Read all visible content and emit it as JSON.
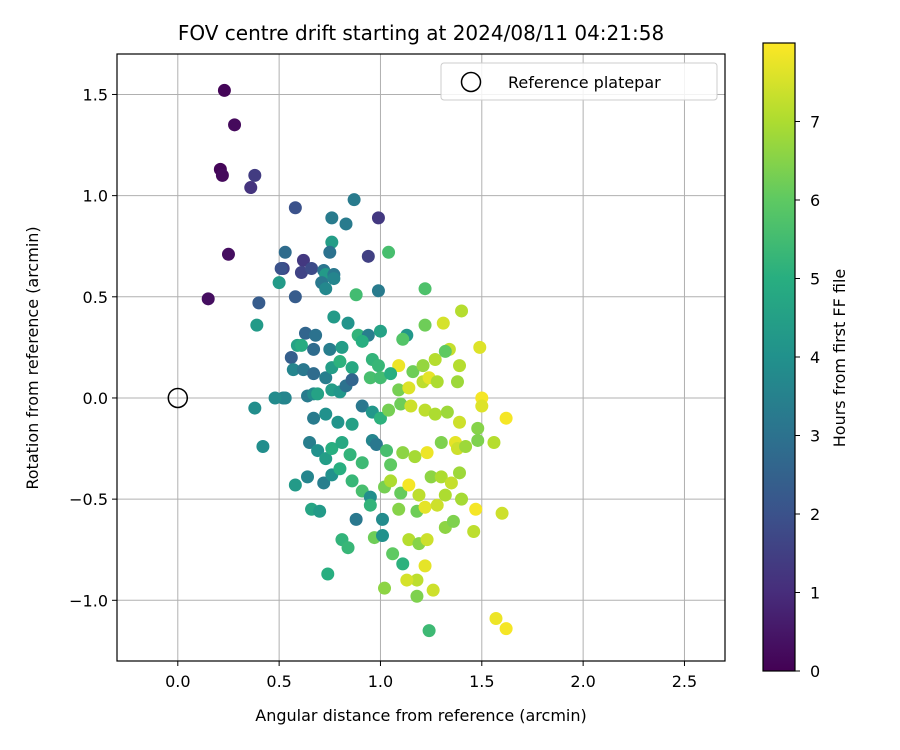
{
  "chart_data": {
    "type": "scatter",
    "title": "FOV centre drift starting at 2024/08/11 04:21:58",
    "xlabel": "Angular distance from reference (arcmin)",
    "ylabel": "Rotation from reference (arcmin)",
    "xlim": [
      -0.3,
      2.7
    ],
    "ylim": [
      -1.3,
      1.7
    ],
    "xticks": [
      0.0,
      0.5,
      1.0,
      1.5,
      2.0,
      2.5
    ],
    "xtick_labels": [
      "0.0",
      "0.5",
      "1.0",
      "1.5",
      "2.0",
      "2.5"
    ],
    "yticks": [
      -1.0,
      -0.5,
      0.0,
      0.5,
      1.0,
      1.5
    ],
    "ytick_labels": [
      "−1.0",
      "−0.5",
      "0.0",
      "0.5",
      "1.0",
      "1.5"
    ],
    "grid": true,
    "legend": {
      "placement": "top-right",
      "entries": [
        "Reference platepar"
      ]
    },
    "reference_point": {
      "x": 0.0,
      "y": 0.0,
      "marker": "open-circle"
    },
    "colorbar": {
      "label": "Hours from first FF file",
      "colormap": "viridis",
      "range": [
        0,
        8
      ],
      "ticks": [
        0,
        1,
        2,
        3,
        4,
        5,
        6,
        7
      ],
      "tick_labels": [
        "0",
        "1",
        "2",
        "3",
        "4",
        "5",
        "6",
        "7"
      ]
    },
    "points": [
      [
        0.23,
        1.52,
        0.1
      ],
      [
        0.28,
        1.35,
        0.2
      ],
      [
        0.21,
        1.13,
        0.1
      ],
      [
        0.22,
        1.1,
        0.2
      ],
      [
        0.36,
        1.04,
        1.2
      ],
      [
        0.38,
        1.1,
        1.4
      ],
      [
        0.25,
        0.71,
        0.3
      ],
      [
        0.15,
        0.49,
        0.3
      ],
      [
        0.58,
        0.94,
        2.0
      ],
      [
        0.76,
        0.89,
        3.3
      ],
      [
        0.87,
        0.98,
        3.3
      ],
      [
        0.99,
        0.89,
        1.3
      ],
      [
        0.83,
        0.86,
        3.3
      ],
      [
        0.94,
        0.7,
        1.5
      ],
      [
        1.04,
        0.72,
        5.6
      ],
      [
        0.76,
        0.77,
        4.4
      ],
      [
        0.75,
        0.72,
        3.0
      ],
      [
        0.53,
        0.72,
        2.8
      ],
      [
        0.52,
        0.64,
        1.6
      ],
      [
        0.51,
        0.64,
        2.0
      ],
      [
        0.62,
        0.68,
        1.3
      ],
      [
        0.61,
        0.62,
        1.6
      ],
      [
        0.66,
        0.64,
        1.8
      ],
      [
        0.72,
        0.63,
        3.1
      ],
      [
        0.73,
        0.61,
        4.3
      ],
      [
        0.77,
        0.61,
        3.2
      ],
      [
        0.71,
        0.57,
        3.2
      ],
      [
        0.73,
        0.54,
        3.7
      ],
      [
        0.77,
        0.59,
        3.6
      ],
      [
        0.5,
        0.57,
        4.3
      ],
      [
        0.4,
        0.47,
        2.3
      ],
      [
        0.58,
        0.5,
        2.3
      ],
      [
        0.88,
        0.51,
        5.5
      ],
      [
        0.99,
        0.53,
        3.3
      ],
      [
        1.22,
        0.54,
        5.7
      ],
      [
        0.39,
        0.36,
        4.3
      ],
      [
        0.63,
        0.32,
        2.6
      ],
      [
        0.68,
        0.31,
        3.0
      ],
      [
        0.77,
        0.4,
        4.3
      ],
      [
        0.84,
        0.37,
        4.1
      ],
      [
        0.89,
        0.31,
        5.2
      ],
      [
        0.94,
        0.31,
        3.4
      ],
      [
        1.0,
        0.33,
        4.6
      ],
      [
        1.13,
        0.31,
        4.2
      ],
      [
        1.11,
        0.29,
        5.8
      ],
      [
        1.22,
        0.36,
        6.2
      ],
      [
        1.31,
        0.37,
        7.5
      ],
      [
        1.4,
        0.43,
        7.1
      ],
      [
        0.59,
        0.26,
        4.6
      ],
      [
        0.61,
        0.26,
        4.9
      ],
      [
        0.67,
        0.24,
        2.8
      ],
      [
        0.75,
        0.24,
        3.4
      ],
      [
        0.81,
        0.25,
        4.4
      ],
      [
        0.91,
        0.28,
        5.0
      ],
      [
        0.56,
        0.2,
        2.4
      ],
      [
        0.57,
        0.14,
        3.6
      ],
      [
        0.62,
        0.14,
        3.2
      ],
      [
        0.67,
        0.12,
        2.8
      ],
      [
        0.73,
        0.1,
        3.4
      ],
      [
        0.76,
        0.15,
        4.4
      ],
      [
        0.8,
        0.18,
        5.1
      ],
      [
        0.86,
        0.15,
        4.8
      ],
      [
        0.96,
        0.19,
        5.2
      ],
      [
        0.99,
        0.16,
        5.3
      ],
      [
        1.09,
        0.16,
        7.8
      ],
      [
        1.16,
        0.13,
        6.2
      ],
      [
        1.21,
        0.16,
        6.7
      ],
      [
        1.27,
        0.19,
        7.1
      ],
      [
        1.34,
        0.24,
        7.3
      ],
      [
        1.32,
        0.23,
        6.0
      ],
      [
        1.39,
        0.16,
        7.1
      ],
      [
        1.49,
        0.25,
        7.6
      ],
      [
        0.52,
        0.0,
        3.5
      ],
      [
        0.53,
        0.0,
        3.6
      ],
      [
        0.48,
        0.0,
        3.8
      ],
      [
        0.64,
        0.01,
        3.3
      ],
      [
        0.67,
        0.02,
        3.8
      ],
      [
        0.69,
        0.02,
        4.6
      ],
      [
        0.76,
        0.04,
        4.4
      ],
      [
        0.8,
        0.03,
        4.2
      ],
      [
        0.83,
        0.06,
        3.0
      ],
      [
        0.86,
        0.09,
        2.6
      ],
      [
        0.95,
        0.1,
        5.6
      ],
      [
        1.0,
        0.1,
        5.5
      ],
      [
        1.05,
        0.12,
        5.0
      ],
      [
        1.09,
        0.04,
        6.3
      ],
      [
        1.14,
        0.05,
        7.6
      ],
      [
        1.21,
        0.08,
        7.2
      ],
      [
        1.24,
        0.1,
        7.7
      ],
      [
        1.28,
        0.08,
        7.0
      ],
      [
        1.38,
        0.08,
        6.8
      ],
      [
        1.5,
        0.0,
        7.9
      ],
      [
        1.5,
        -0.04,
        7.6
      ],
      [
        0.38,
        -0.05,
        3.9
      ],
      [
        0.42,
        -0.24,
        3.9
      ],
      [
        0.67,
        -0.1,
        3.3
      ],
      [
        0.73,
        -0.08,
        4.0
      ],
      [
        0.79,
        -0.12,
        4.1
      ],
      [
        0.86,
        -0.13,
        4.5
      ],
      [
        0.91,
        -0.04,
        3.2
      ],
      [
        0.96,
        -0.07,
        4.2
      ],
      [
        1.0,
        -0.1,
        5.1
      ],
      [
        1.04,
        -0.06,
        6.3
      ],
      [
        1.1,
        -0.03,
        6.2
      ],
      [
        1.15,
        -0.04,
        7.4
      ],
      [
        1.22,
        -0.06,
        7.2
      ],
      [
        1.27,
        -0.08,
        7.0
      ],
      [
        1.33,
        -0.07,
        6.8
      ],
      [
        1.39,
        -0.12,
        7.4
      ],
      [
        1.48,
        -0.15,
        6.5
      ],
      [
        1.62,
        -0.1,
        7.9
      ],
      [
        0.65,
        -0.22,
        3.4
      ],
      [
        0.69,
        -0.26,
        4.0
      ],
      [
        0.73,
        -0.3,
        4.4
      ],
      [
        0.76,
        -0.25,
        5.0
      ],
      [
        0.81,
        -0.22,
        4.8
      ],
      [
        0.85,
        -0.28,
        5.2
      ],
      [
        0.91,
        -0.32,
        5.4
      ],
      [
        0.96,
        -0.21,
        3.6
      ],
      [
        0.98,
        -0.23,
        3.2
      ],
      [
        1.03,
        -0.26,
        5.6
      ],
      [
        1.05,
        -0.33,
        6.0
      ],
      [
        1.11,
        -0.27,
        6.6
      ],
      [
        1.17,
        -0.29,
        6.9
      ],
      [
        1.23,
        -0.27,
        7.8
      ],
      [
        1.3,
        -0.22,
        6.4
      ],
      [
        1.37,
        -0.22,
        7.7
      ],
      [
        1.38,
        -0.25,
        7.4
      ],
      [
        1.42,
        -0.24,
        6.8
      ],
      [
        1.48,
        -0.21,
        6.4
      ],
      [
        1.56,
        -0.22,
        7.1
      ],
      [
        0.58,
        -0.43,
        4.3
      ],
      [
        0.64,
        -0.39,
        3.6
      ],
      [
        0.72,
        -0.42,
        3.4
      ],
      [
        0.76,
        -0.38,
        4.0
      ],
      [
        0.8,
        -0.35,
        5.0
      ],
      [
        0.86,
        -0.41,
        5.3
      ],
      [
        0.91,
        -0.46,
        5.6
      ],
      [
        0.95,
        -0.49,
        3.9
      ],
      [
        1.02,
        -0.44,
        6.3
      ],
      [
        1.05,
        -0.41,
        7.0
      ],
      [
        1.1,
        -0.47,
        6.1
      ],
      [
        1.14,
        -0.43,
        7.9
      ],
      [
        1.19,
        -0.48,
        7.2
      ],
      [
        1.25,
        -0.39,
        6.6
      ],
      [
        1.3,
        -0.39,
        7.0
      ],
      [
        1.35,
        -0.42,
        7.3
      ],
      [
        1.39,
        -0.37,
        6.8
      ],
      [
        0.66,
        -0.55,
        4.7
      ],
      [
        0.7,
        -0.56,
        4.3
      ],
      [
        0.88,
        -0.6,
        3.2
      ],
      [
        0.95,
        -0.53,
        5.2
      ],
      [
        1.01,
        -0.6,
        3.8
      ],
      [
        1.09,
        -0.55,
        6.5
      ],
      [
        1.18,
        -0.56,
        6.2
      ],
      [
        1.22,
        -0.54,
        7.7
      ],
      [
        1.28,
        -0.53,
        7.4
      ],
      [
        1.32,
        -0.48,
        7.0
      ],
      [
        1.4,
        -0.5,
        6.9
      ],
      [
        1.47,
        -0.55,
        7.9
      ],
      [
        1.6,
        -0.57,
        7.4
      ],
      [
        0.81,
        -0.7,
        5.2
      ],
      [
        0.84,
        -0.74,
        5.3
      ],
      [
        0.97,
        -0.69,
        6.2
      ],
      [
        1.01,
        -0.68,
        4.0
      ],
      [
        1.06,
        -0.77,
        6.0
      ],
      [
        1.14,
        -0.7,
        7.1
      ],
      [
        1.19,
        -0.72,
        6.5
      ],
      [
        1.23,
        -0.7,
        7.4
      ],
      [
        1.32,
        -0.64,
        6.6
      ],
      [
        1.36,
        -0.61,
        6.4
      ],
      [
        1.46,
        -0.66,
        7.2
      ],
      [
        0.74,
        -0.87,
        5.0
      ],
      [
        1.02,
        -0.94,
        6.6
      ],
      [
        1.11,
        -0.82,
        5.1
      ],
      [
        1.18,
        -0.9,
        7.2
      ],
      [
        1.22,
        -0.83,
        7.7
      ],
      [
        1.13,
        -0.9,
        7.5
      ],
      [
        1.26,
        -0.95,
        7.4
      ],
      [
        1.18,
        -0.98,
        6.4
      ],
      [
        1.24,
        -1.15,
        5.4
      ],
      [
        1.57,
        -1.09,
        7.8
      ],
      [
        1.62,
        -1.14,
        7.9
      ]
    ]
  }
}
